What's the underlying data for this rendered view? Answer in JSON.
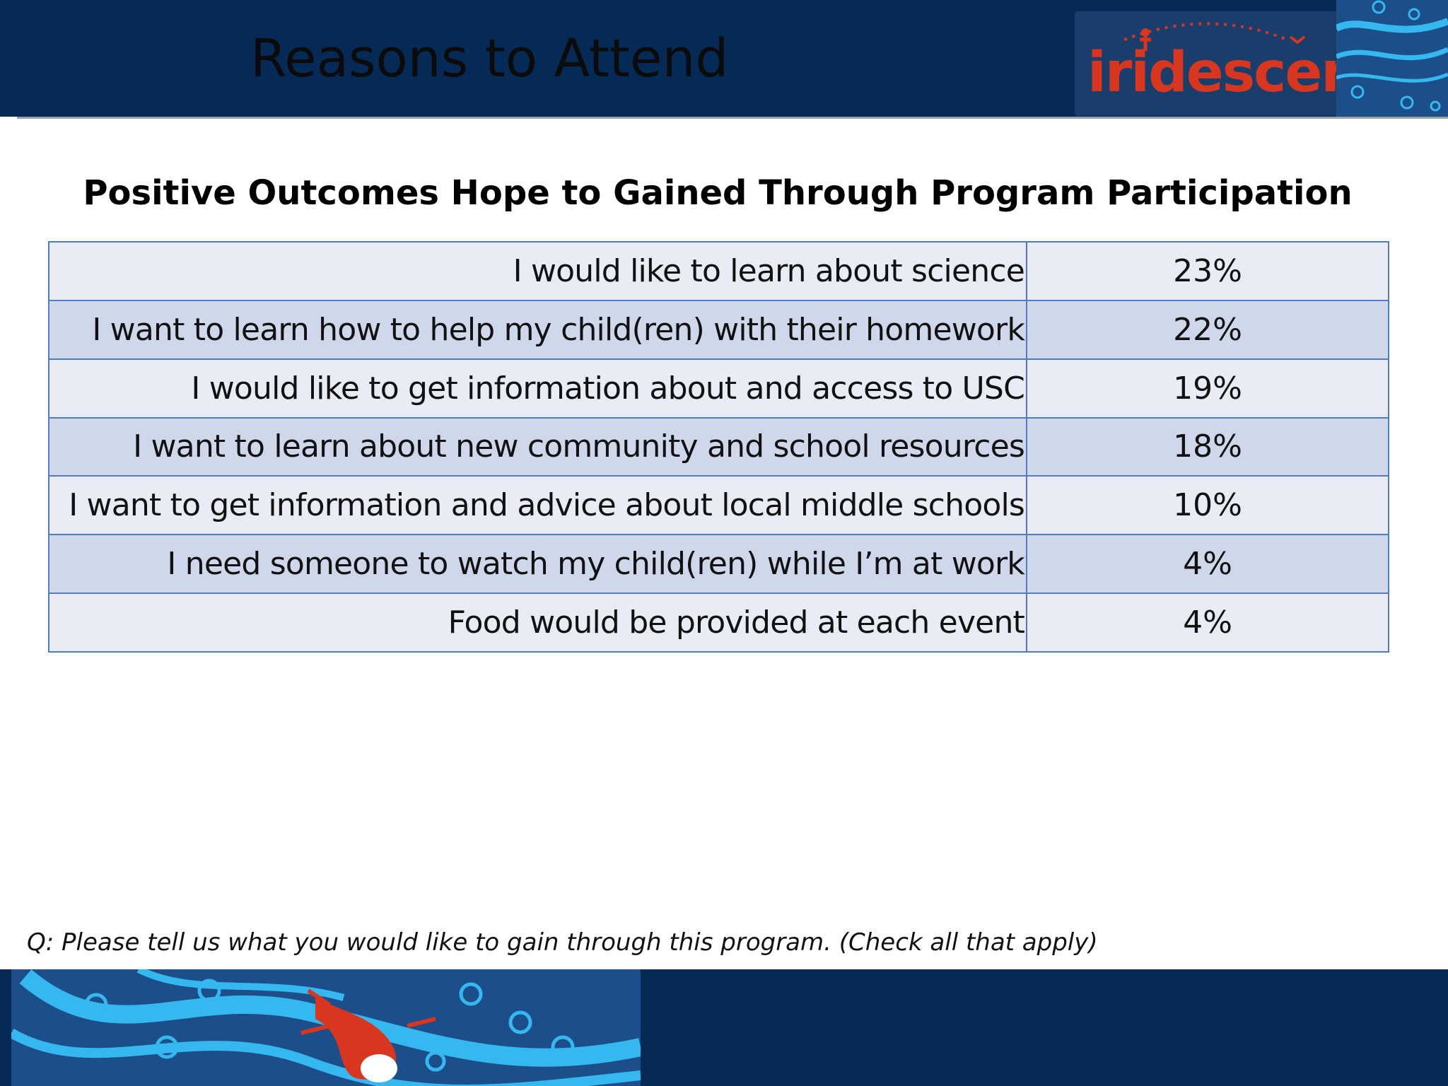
{
  "slide": {
    "title": "Reasons to Attend"
  },
  "logo": {
    "text": "iridescent",
    "colors": {
      "word": "#d9361f",
      "background": "#1a3e6c"
    }
  },
  "table": {
    "heading": "Positive Outcomes Hope to Gained Through Program Participation",
    "rows": [
      {
        "reason": "I would like to learn about science",
        "percent": "23%"
      },
      {
        "reason": "I want to learn how to help my child(ren) with their homework",
        "percent": "22%"
      },
      {
        "reason": "I would like to get information about and access to USC",
        "percent": "19%"
      },
      {
        "reason": "I want to learn about new community and school resources",
        "percent": "18%"
      },
      {
        "reason": "I want to get information and advice about local middle schools",
        "percent": "10%"
      },
      {
        "reason": "I need someone to watch my child(ren) while I’m at work",
        "percent": "4%"
      },
      {
        "reason": "Food would be provided at each event",
        "percent": "4%"
      }
    ]
  },
  "question": "Q: Please tell us what you would like to gain through this program. (Check all that apply)",
  "colors": {
    "band": "#062a56",
    "row_light": "#e9ecf5",
    "row_dark": "#cfd7ea",
    "border": "#4f7cc2",
    "wave": "#35b8f0"
  }
}
